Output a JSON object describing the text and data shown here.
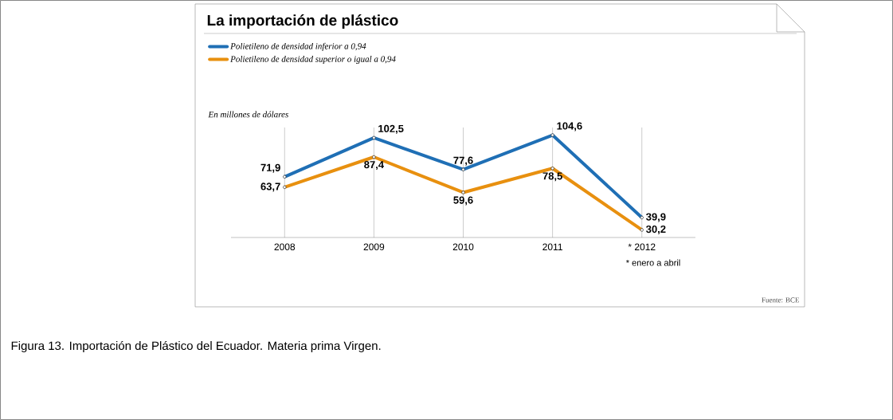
{
  "chart_data": {
    "type": "line",
    "title": "La importación de plástico",
    "ylabel": "En millones de dólares",
    "categories": [
      "2008",
      "2009",
      "2010",
      "2011",
      "* 2012"
    ],
    "series": [
      {
        "name": "Polietileno de densidad inferior  a 0,94",
        "color": "#1f6fb5",
        "values": [
          71.9,
          102.5,
          77.6,
          104.6,
          39.9
        ],
        "value_labels": [
          "71,9",
          "102,5",
          "77,6",
          "104,6",
          "39,9"
        ]
      },
      {
        "name": "Polietileno de densidad superior o igual a 0,94",
        "color": "#e8900f",
        "values": [
          63.7,
          87.4,
          59.6,
          78.5,
          30.2
        ],
        "value_labels": [
          "63,7",
          "87,4",
          "59,6",
          "78,5",
          "30,2"
        ]
      }
    ],
    "marker": "circle",
    "grid": "x",
    "legend": "top left",
    "annotations": [
      "* enero a abril",
      "Fuente: BCE",
      "Figura 13. Importación de Plástico del Ecuador. Materia prima Virgen."
    ]
  }
}
